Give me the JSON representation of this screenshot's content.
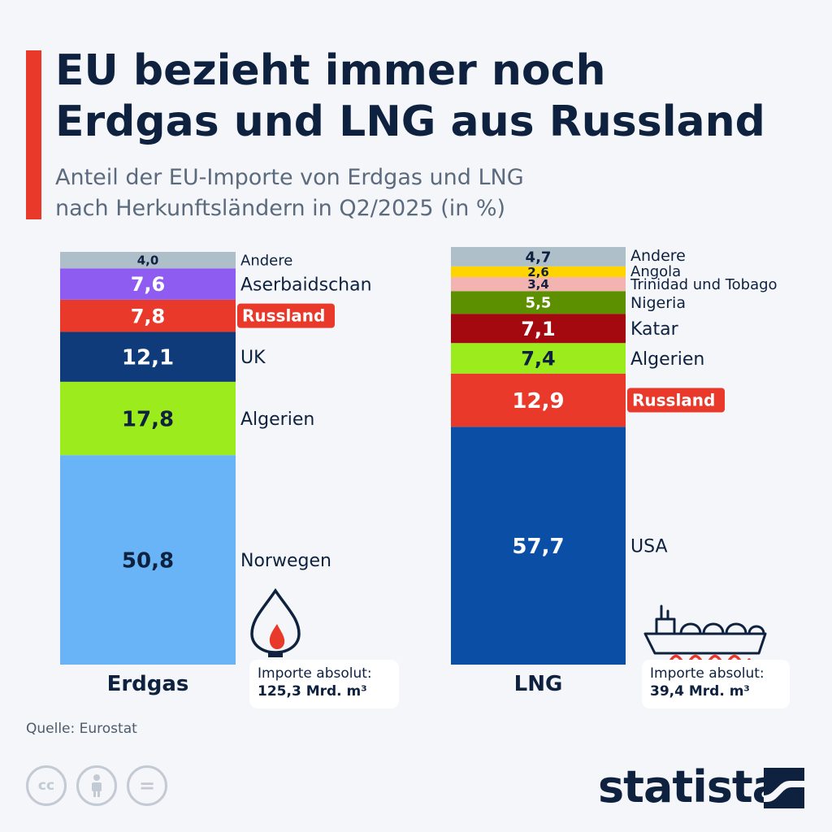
{
  "title_lines": [
    "EU bezieht immer noch",
    "Erdgas und LNG aus Russland"
  ],
  "subtitle_lines": [
    "Anteil der EU-Importe von Erdgas und LNG",
    "nach Herkunftsländern in Q2/2025 (in %)"
  ],
  "source": "Quelle: Eurostat",
  "brand": "statista",
  "license_icons": [
    "cc-icon",
    "attribution-icon",
    "noderivs-icon"
  ],
  "license_labels": [
    "cc",
    "",
    "="
  ],
  "colors": {
    "accent": "#e8392b",
    "title": "#0e2240",
    "highlight": "#e8392b"
  },
  "chart_data": [
    {
      "type": "bar",
      "stacked": true,
      "category": "Erdgas",
      "unit": "%",
      "ylim": [
        0,
        100
      ],
      "series": [
        {
          "name": "Norwegen",
          "value": 50.8,
          "label": "50,8",
          "color": "#69b3f7",
          "text_color": "#0e2240"
        },
        {
          "name": "Algerien",
          "value": 17.8,
          "label": "17,8",
          "color": "#9cec1d",
          "text_color": "#0e2240"
        },
        {
          "name": "UK",
          "value": 12.1,
          "label": "12,1",
          "color": "#0f3b7a",
          "text_color": "#ffffff"
        },
        {
          "name": "Russland",
          "value": 7.8,
          "label": "7,8",
          "color": "#e8392b",
          "text_color": "#ffffff",
          "highlight": true
        },
        {
          "name": "Aserbaidschan",
          "value": 7.6,
          "label": "7,6",
          "color": "#8e5cf0",
          "text_color": "#ffffff"
        },
        {
          "name": "Andere",
          "value": 4.0,
          "label": "4,0",
          "color": "#aebfca",
          "text_color": "#0e2240"
        }
      ],
      "import_label": "Importe absolut:",
      "import_value": "125,3 Mrd. m³",
      "icon": "gas-flame-icon"
    },
    {
      "type": "bar",
      "stacked": true,
      "category": "LNG",
      "unit": "%",
      "ylim": [
        0,
        100
      ],
      "series": [
        {
          "name": "USA",
          "value": 57.7,
          "label": "57,7",
          "color": "#0a4ea6",
          "text_color": "#ffffff"
        },
        {
          "name": "Russland",
          "value": 12.9,
          "label": "12,9",
          "color": "#e8392b",
          "text_color": "#ffffff",
          "highlight": true
        },
        {
          "name": "Algerien",
          "value": 7.4,
          "label": "7,4",
          "color": "#9cec1d",
          "text_color": "#0e2240"
        },
        {
          "name": "Katar",
          "value": 7.1,
          "label": "7,1",
          "color": "#a3090e",
          "text_color": "#ffffff"
        },
        {
          "name": "Nigeria",
          "value": 5.5,
          "label": "5,5",
          "color": "#5c9000",
          "text_color": "#ffffff"
        },
        {
          "name": "Trinidad und Tobago",
          "value": 3.4,
          "label": "3,4",
          "color": "#f3b3b0",
          "text_color": "#0e2240"
        },
        {
          "name": "Angola",
          "value": 2.6,
          "label": "2,6",
          "color": "#ffd400",
          "text_color": "#0e2240"
        },
        {
          "name": "Andere",
          "value": 4.7,
          "label": "4,7",
          "color": "#aebfca",
          "text_color": "#0e2240"
        }
      ],
      "import_label": "Importe absolut:",
      "import_value": "39,4 Mrd. m³",
      "icon": "lng-tanker-icon"
    }
  ]
}
